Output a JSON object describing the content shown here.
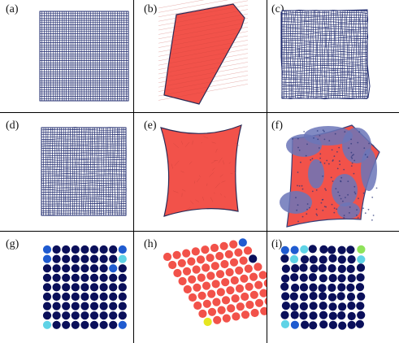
{
  "figure": {
    "panels": [
      {
        "id": "a",
        "label": "(a)",
        "kind": "mesh-square"
      },
      {
        "id": "b",
        "label": "(b)",
        "kind": "rhombus-red"
      },
      {
        "id": "c",
        "label": "(c)",
        "kind": "mesh-square-distorted"
      },
      {
        "id": "d",
        "label": "(d)",
        "kind": "mesh-square"
      },
      {
        "id": "e",
        "label": "(e)",
        "kind": "pillow-red"
      },
      {
        "id": "f",
        "label": "(f)",
        "kind": "pillow-mixed"
      },
      {
        "id": "g",
        "label": "(g)",
        "kind": "dot-grid-square"
      },
      {
        "id": "h",
        "label": "(h)",
        "kind": "dot-grid-rhombus"
      },
      {
        "id": "i",
        "label": "(i)",
        "kind": "dot-grid-distorted"
      }
    ],
    "colors": {
      "mesh": "#1f2a6e",
      "red_phase": "#f2524a",
      "dot_dark": "#0a0f5a",
      "dot_mid": "#1f5bd0",
      "dot_light": "#5fd3e6",
      "dot_yellow": "#e6e620",
      "dot_green": "#8fe35a",
      "grid_line": "#000000"
    }
  }
}
